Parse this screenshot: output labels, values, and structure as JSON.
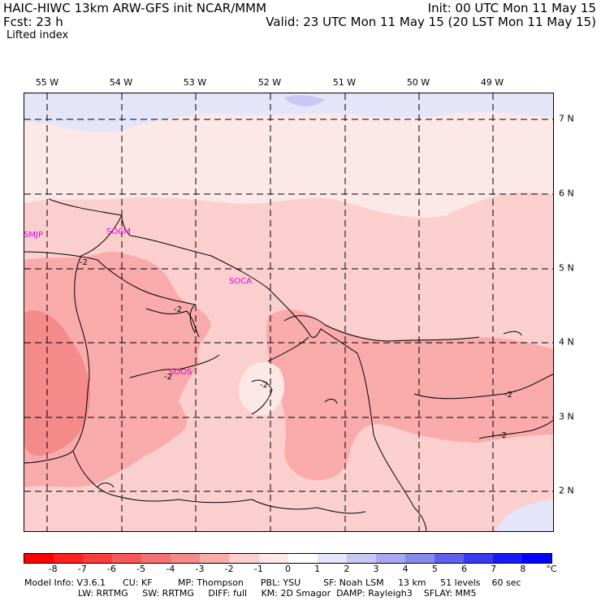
{
  "header": {
    "line1_left": "HAIC-HIWC 13km ARW-GFS init   NCAR/MMM",
    "line1_right": "Init: 00 UTC Mon 11 May 15",
    "line2_left": "Fcst:    23 h",
    "line2_right": "Valid: 23 UTC Mon 11 May 15 (20 LST Mon 11 May 15)",
    "field_name": "Lifted index"
  },
  "map": {
    "longitude_labels": [
      "55 W",
      "54 W",
      "53 W",
      "52 W",
      "51 W",
      "50 W",
      "49 W"
    ],
    "latitude_labels": [
      "7 N",
      "6 N",
      "5 N",
      "4 N",
      "3 N",
      "2 N"
    ],
    "stations": [
      "SMJP",
      "SOCM",
      "SOCA",
      "SOOS"
    ],
    "contour_label_text": "-2",
    "colors": {
      "very_light_pink": "#fde8e8",
      "light_pink": "#fccfcf",
      "medium_pink": "#f9aaaa",
      "deeper_pink": "#f48a8a",
      "white": "#ffffff",
      "light_blue": "#e5e5fa",
      "mid_blue": "#c8c8f4"
    }
  },
  "colorbar": {
    "unit": "°C",
    "tick_labels": [
      "-8",
      "-7",
      "-6",
      "-5",
      "-4",
      "-3",
      "-2",
      "-1",
      "0",
      "1",
      "2",
      "3",
      "4",
      "5",
      "6",
      "7",
      "8"
    ],
    "colors": [
      "#ff0000",
      "#ff2020",
      "#fb3c3c",
      "#f85858",
      "#f57272",
      "#f48a8a",
      "#f9aaaa",
      "#fccfcf",
      "#fde8e8",
      "#ffffff",
      "#e5e5fa",
      "#c8c8f4",
      "#a8a8f0",
      "#8a8aec",
      "#6060ec",
      "#3a3af0",
      "#1a1af4",
      "#0000ff"
    ]
  },
  "footer": {
    "line1": [
      "Model Info: V3.6.1",
      "CU: KF",
      "MP: Thompson",
      "PBL: YSU",
      "SF: Noah LSM",
      "13 km",
      "51 levels",
      "60 sec"
    ],
    "line2": [
      "LW: RRTMG",
      "SW: RRTMG",
      "DIFF: full",
      "KM: 2D Smagor",
      "DAMP: Rayleigh3",
      "SFLAY: MM5"
    ]
  }
}
